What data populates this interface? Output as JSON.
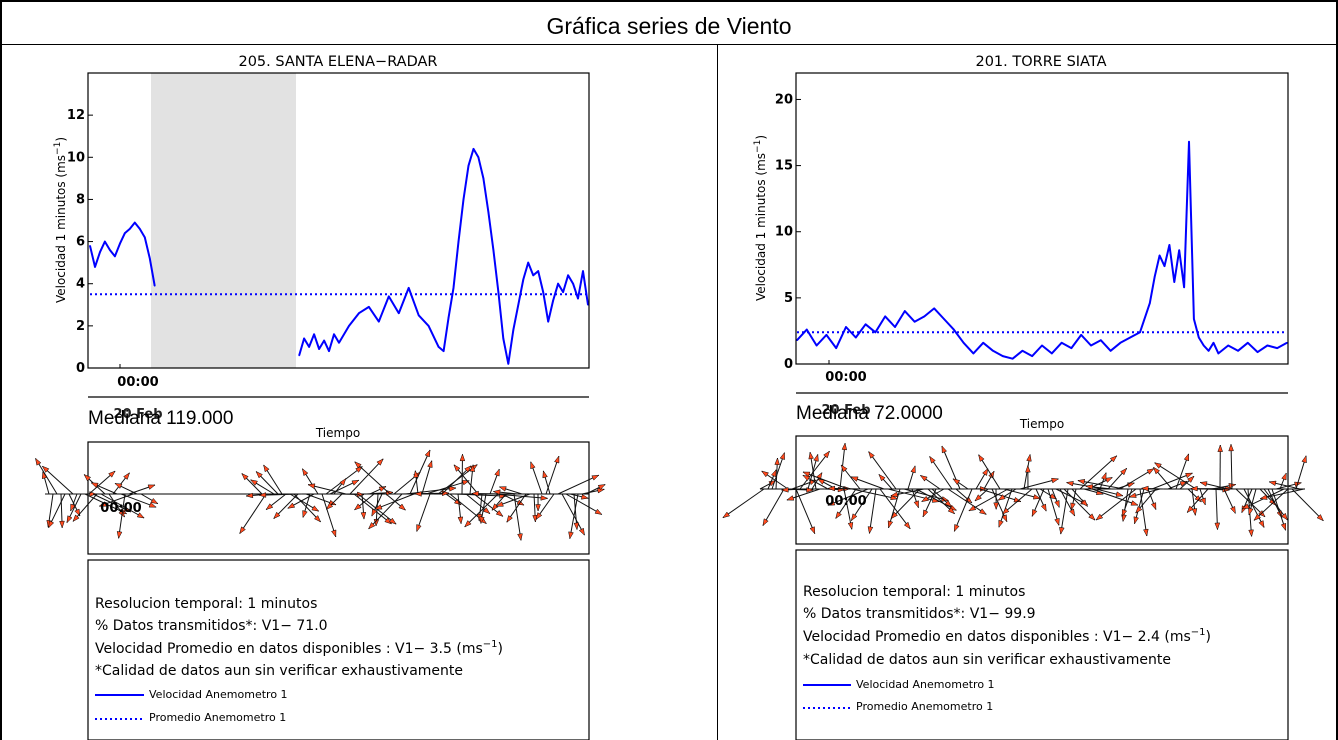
{
  "page": {
    "title": "Gráfica series de Viento"
  },
  "panels": [
    {
      "station": "205. SANTA ELENA−RADAR",
      "ylabel": "Velocidad 1 minutos",
      "yunit": "(ms",
      "yunit_exp": "−1",
      "yunit_close": ")",
      "xtick_time": "00:00",
      "xtick_date": "20 Feb",
      "xlabel": "Tiempo",
      "mediana_label": "Mediana",
      "mediana_value": "119.000",
      "vector_tick": "00:00",
      "stats": {
        "resolucion": "Resolucion temporal: 1 minutos",
        "datos": "% Datos transmitidos*: V1− 71.0",
        "promedio": "Velocidad Promedio en datos disponibles : V1−  3.5",
        "promedio_unit": "(ms",
        "promedio_exp": "−1",
        "promedio_close": ")",
        "calidad": "*Calidad de datos aun sin verificar exhaustivamente"
      },
      "legend": [
        "Velocidad Anemometro 1",
        "Promedio Anemometro 1"
      ]
    },
    {
      "station": "201. TORRE SIATA",
      "ylabel": "Velocidad 1 minutos",
      "yunit": "(ms",
      "yunit_exp": "−1",
      "yunit_close": ")",
      "xtick_time": "00:00",
      "xtick_date": "20 Feb",
      "xlabel": "Tiempo",
      "mediana_label": "Mediana",
      "mediana_value": "72.0000",
      "vector_tick": "00:00",
      "stats": {
        "resolucion": "Resolucion temporal: 1 minutos",
        "datos": "% Datos transmitidos*: V1− 99.9",
        "promedio": "Velocidad Promedio en datos disponibles : V1−  2.4",
        "promedio_unit": "(ms",
        "promedio_exp": "−1",
        "promedio_close": ")",
        "calidad": "*Calidad de datos aun sin verificar exhaustivamente"
      },
      "legend": [
        "Velocidad Anemometro 1",
        "Promedio Anemometro 1"
      ]
    }
  ],
  "colors": {
    "series": "#0000ff",
    "mean": "#0000ff",
    "gap": "#e2e2e2",
    "arrow_fill": "#ff4a1e",
    "arrow_edge": "#000000"
  },
  "chart_data": [
    {
      "type": "line",
      "title": "205. SANTA ELENA−RADAR",
      "ylabel": "Velocidad 1 minutos (ms−1)",
      "xlabel": "Tiempo",
      "ylim": [
        0,
        14
      ],
      "yticks": [
        0,
        2,
        4,
        6,
        8,
        10,
        12
      ],
      "xticks": [
        "00:00"
      ],
      "x_range": [
        0,
        1
      ],
      "missing_interval": [
        0.13,
        0.42
      ],
      "grid": false,
      "series": [
        {
          "name": "Velocidad Anemometro 1",
          "x": [
            0.0,
            0.01,
            0.02,
            0.03,
            0.04,
            0.05,
            0.06,
            0.07,
            0.08,
            0.09,
            0.1,
            0.11,
            0.12,
            0.13,
            0.42,
            0.43,
            0.44,
            0.45,
            0.46,
            0.47,
            0.48,
            0.49,
            0.5,
            0.52,
            0.54,
            0.56,
            0.58,
            0.6,
            0.62,
            0.64,
            0.66,
            0.68,
            0.7,
            0.71,
            0.72,
            0.73,
            0.74,
            0.75,
            0.76,
            0.77,
            0.78,
            0.79,
            0.8,
            0.81,
            0.82,
            0.83,
            0.84,
            0.85,
            0.86,
            0.87,
            0.88,
            0.89,
            0.9,
            0.91,
            0.92,
            0.93,
            0.94,
            0.95,
            0.96,
            0.97,
            0.98,
            0.99,
            1.0
          ],
          "values": [
            5.8,
            4.8,
            5.5,
            6.0,
            5.6,
            5.3,
            5.9,
            6.4,
            6.6,
            6.9,
            6.6,
            6.2,
            5.2,
            3.9,
            0.6,
            1.4,
            1.0,
            1.6,
            0.9,
            1.3,
            0.8,
            1.6,
            1.2,
            2.0,
            2.6,
            2.9,
            2.2,
            3.4,
            2.6,
            3.8,
            2.5,
            2.0,
            1.0,
            0.8,
            2.4,
            3.8,
            6.0,
            8.0,
            9.6,
            10.4,
            10.0,
            9.0,
            7.4,
            5.6,
            3.6,
            1.4,
            0.2,
            1.8,
            3.0,
            4.2,
            5.0,
            4.4,
            4.6,
            3.6,
            2.2,
            3.2,
            4.0,
            3.6,
            4.4,
            4.0,
            3.3,
            4.6,
            3.0
          ]
        },
        {
          "name": "Promedio Anemometro 1",
          "x": [
            0.0,
            1.0
          ],
          "values": [
            3.5,
            3.5
          ]
        }
      ]
    },
    {
      "type": "line",
      "title": "201. TORRE SIATA",
      "ylabel": "Velocidad 1 minutos (ms−1)",
      "xlabel": "Tiempo",
      "ylim": [
        0,
        22
      ],
      "yticks": [
        0,
        5,
        10,
        15,
        20
      ],
      "xticks": [
        "00:00"
      ],
      "x_range": [
        0,
        1
      ],
      "grid": false,
      "series": [
        {
          "name": "Velocidad Anemometro 1",
          "x": [
            0.0,
            0.02,
            0.04,
            0.06,
            0.08,
            0.1,
            0.12,
            0.14,
            0.16,
            0.18,
            0.2,
            0.22,
            0.24,
            0.26,
            0.28,
            0.3,
            0.32,
            0.34,
            0.36,
            0.38,
            0.4,
            0.42,
            0.44,
            0.46,
            0.48,
            0.5,
            0.52,
            0.54,
            0.56,
            0.58,
            0.6,
            0.62,
            0.64,
            0.66,
            0.68,
            0.7,
            0.72,
            0.73,
            0.74,
            0.75,
            0.76,
            0.77,
            0.78,
            0.79,
            0.8,
            0.81,
            0.82,
            0.83,
            0.84,
            0.85,
            0.86,
            0.88,
            0.9,
            0.92,
            0.94,
            0.96,
            0.98,
            1.0
          ],
          "values": [
            1.8,
            2.6,
            1.4,
            2.2,
            1.2,
            2.8,
            2.0,
            3.0,
            2.4,
            3.6,
            2.8,
            4.0,
            3.2,
            3.6,
            4.2,
            3.4,
            2.6,
            1.6,
            0.8,
            1.6,
            1.0,
            0.6,
            0.4,
            1.0,
            0.6,
            1.4,
            0.8,
            1.6,
            1.2,
            2.2,
            1.4,
            1.8,
            1.0,
            1.6,
            2.0,
            2.4,
            4.6,
            6.6,
            8.2,
            7.4,
            9.0,
            6.2,
            8.6,
            5.8,
            16.8,
            3.4,
            2.0,
            1.4,
            1.0,
            1.6,
            0.8,
            1.4,
            1.0,
            1.6,
            0.9,
            1.4,
            1.2,
            1.6
          ]
        },
        {
          "name": "Promedio Anemometro 1",
          "x": [
            0.0,
            1.0
          ],
          "values": [
            2.4,
            2.4
          ]
        }
      ]
    }
  ]
}
